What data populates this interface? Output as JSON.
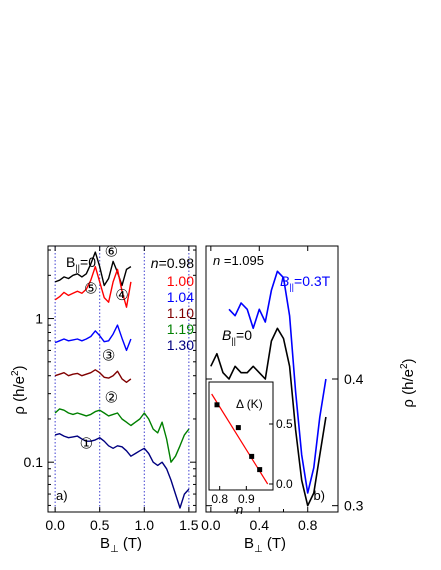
{
  "chart_data": [
    {
      "type": "line",
      "panel_label": "a)",
      "xlabel_main": "B",
      "xlabel_sub": "⊥",
      "xlabel_unit": " (T)",
      "ylabel": "ρ (h/e",
      "ylabel_sup": "2",
      "ylabel_close": ")",
      "yscale": "log",
      "xlim": [
        -0.08,
        1.58
      ],
      "ylim": [
        0.045,
        3.2
      ],
      "xticks": [
        0.0,
        0.5,
        1.0,
        1.5
      ],
      "xtick_labels": [
        "0.0",
        "0.5",
        "1.0",
        "1.5"
      ],
      "yticks": [
        1,
        0.1
      ],
      "ytick_labels": [
        "1",
        "0.1"
      ],
      "vlines": [
        0.0,
        0.5,
        1.0,
        1.5
      ],
      "annotation_bpar": "B",
      "annotation_bpar_sub": "||",
      "annotation_bpar_eq": "=0",
      "legend_header_n": "n",
      "legend_header_eq": "=",
      "series": [
        {
          "name": "0.98",
          "marker": "⑥",
          "color": "#000000",
          "x": [
            0.0,
            0.05,
            0.1,
            0.15,
            0.2,
            0.25,
            0.3,
            0.35,
            0.4,
            0.45,
            0.5,
            0.55,
            0.6,
            0.65,
            0.7,
            0.75,
            0.8,
            0.85
          ],
          "y": [
            1.8,
            1.85,
            1.95,
            1.9,
            2.0,
            2.05,
            1.95,
            2.05,
            2.4,
            2.9,
            2.3,
            1.7,
            1.9,
            2.5,
            2.1,
            1.7,
            2.2,
            2.3
          ]
        },
        {
          "name": "1.00",
          "marker": "⑤",
          "color": "#ff0000",
          "x": [
            0.0,
            0.05,
            0.1,
            0.15,
            0.2,
            0.25,
            0.3,
            0.35,
            0.4,
            0.45,
            0.5,
            0.55,
            0.6,
            0.65,
            0.7,
            0.75,
            0.8,
            0.85
          ],
          "y": [
            1.35,
            1.42,
            1.52,
            1.45,
            1.5,
            1.55,
            1.5,
            1.6,
            1.85,
            2.3,
            1.8,
            1.4,
            1.3,
            1.8,
            2.2,
            1.55,
            1.2,
            1.8
          ]
        },
        {
          "name": "1.04",
          "marker": "④",
          "color": "#0000ff",
          "x": [
            0.0,
            0.05,
            0.1,
            0.15,
            0.2,
            0.25,
            0.3,
            0.35,
            0.4,
            0.45,
            0.5,
            0.55,
            0.6,
            0.65,
            0.7,
            0.75,
            0.8,
            0.85
          ],
          "y": [
            0.68,
            0.7,
            0.72,
            0.7,
            0.71,
            0.72,
            0.7,
            0.72,
            0.75,
            0.82,
            0.76,
            0.69,
            0.7,
            0.78,
            0.9,
            0.73,
            0.6,
            0.72
          ]
        },
        {
          "name": "1.10",
          "marker": "③",
          "color": "#800000",
          "x": [
            0.0,
            0.05,
            0.1,
            0.15,
            0.2,
            0.25,
            0.3,
            0.35,
            0.4,
            0.45,
            0.5,
            0.55,
            0.6,
            0.65,
            0.7,
            0.75,
            0.8,
            0.85
          ],
          "y": [
            0.4,
            0.41,
            0.42,
            0.4,
            0.41,
            0.415,
            0.4,
            0.41,
            0.42,
            0.44,
            0.42,
            0.39,
            0.385,
            0.4,
            0.43,
            0.38,
            0.36,
            0.38
          ]
        },
        {
          "name": "1.19",
          "marker": "②",
          "color": "#008000",
          "x": [
            0.0,
            0.05,
            0.1,
            0.15,
            0.2,
            0.25,
            0.3,
            0.35,
            0.4,
            0.45,
            0.5,
            0.55,
            0.6,
            0.65,
            0.7,
            0.75,
            0.8,
            0.85,
            0.9,
            0.95,
            1.0,
            1.05,
            1.1,
            1.15,
            1.2,
            1.25,
            1.3,
            1.35,
            1.4,
            1.45,
            1.5
          ],
          "y": [
            0.22,
            0.235,
            0.23,
            0.22,
            0.215,
            0.22,
            0.215,
            0.21,
            0.215,
            0.225,
            0.23,
            0.22,
            0.21,
            0.215,
            0.22,
            0.2,
            0.19,
            0.18,
            0.19,
            0.2,
            0.22,
            0.2,
            0.17,
            0.16,
            0.19,
            0.145,
            0.1,
            0.11,
            0.13,
            0.155,
            0.17
          ]
        },
        {
          "name": "1.30",
          "marker": "①",
          "color": "#000080",
          "x": [
            0.0,
            0.05,
            0.1,
            0.15,
            0.2,
            0.25,
            0.3,
            0.35,
            0.4,
            0.45,
            0.5,
            0.55,
            0.6,
            0.65,
            0.7,
            0.75,
            0.8,
            0.85,
            0.9,
            0.95,
            1.0,
            1.05,
            1.1,
            1.15,
            1.2,
            1.25,
            1.3,
            1.35,
            1.4,
            1.45,
            1.5
          ],
          "y": [
            0.155,
            0.158,
            0.152,
            0.148,
            0.15,
            0.152,
            0.145,
            0.14,
            0.14,
            0.143,
            0.148,
            0.14,
            0.13,
            0.125,
            0.13,
            0.128,
            0.12,
            0.11,
            0.115,
            0.12,
            0.125,
            0.115,
            0.1,
            0.095,
            0.1,
            0.09,
            0.075,
            0.06,
            0.048,
            0.06,
            0.065
          ]
        }
      ]
    },
    {
      "type": "line",
      "panel_label": "b)",
      "xlabel_main": "B",
      "xlabel_sub": "⊥",
      "xlabel_unit": " (T)",
      "ylabel": "ρ (h/e",
      "ylabel_sup": "2",
      "ylabel_close": ")",
      "yaxis_side": "right",
      "xlim": [
        -0.04,
        1.05
      ],
      "ylim": [
        0.295,
        0.505
      ],
      "xticks": [
        0.0,
        0.4,
        0.8
      ],
      "xtick_labels": [
        "0.0",
        "0.4",
        "0.8"
      ],
      "yticks": [
        0.3,
        0.4
      ],
      "ytick_labels": [
        "0.3",
        "0.4"
      ],
      "annotation_n": "n",
      "annotation_n_value": " =1.095",
      "label_bpar_b": "B",
      "label_bpar_sub": "||",
      "label_bpar_03": "=0.3T",
      "label_bpar_0": "=0",
      "series": [
        {
          "name": "B||=0",
          "color": "#000000",
          "x": [
            0.0,
            0.05,
            0.1,
            0.15,
            0.2,
            0.25,
            0.3,
            0.35,
            0.4,
            0.45,
            0.5,
            0.55,
            0.6,
            0.65,
            0.7,
            0.75,
            0.8,
            0.85,
            0.9,
            0.95
          ],
          "y": [
            0.41,
            0.42,
            0.405,
            0.4,
            0.41,
            0.405,
            0.405,
            0.41,
            0.405,
            0.4,
            0.43,
            0.44,
            0.432,
            0.41,
            0.36,
            0.32,
            0.3,
            0.31,
            0.34,
            0.37
          ]
        },
        {
          "name": "B||=0.3T",
          "color": "#0000ff",
          "x": [
            0.15,
            0.2,
            0.25,
            0.3,
            0.35,
            0.4,
            0.45,
            0.5,
            0.55,
            0.6,
            0.65,
            0.7,
            0.75,
            0.8,
            0.85,
            0.9,
            0.95
          ],
          "y": [
            0.455,
            0.45,
            0.46,
            0.455,
            0.44,
            0.455,
            0.445,
            0.47,
            0.485,
            0.48,
            0.45,
            0.39,
            0.34,
            0.31,
            0.33,
            0.37,
            0.4
          ]
        }
      ],
      "inset": {
        "type": "scatter",
        "xlabel": "n",
        "ylabel": "Δ (K)",
        "xlim": [
          0.76,
          1.0
        ],
        "ylim": [
          -0.05,
          0.85
        ],
        "xticks": [
          0.8,
          0.9
        ],
        "xtick_labels": [
          "0.8",
          "0.9"
        ],
        "yticks": [
          0.0,
          0.5
        ],
        "ytick_labels": [
          "0.0",
          "0.5"
        ],
        "points": {
          "x": [
            0.79,
            0.87,
            0.92,
            0.95
          ],
          "y": [
            0.66,
            0.47,
            0.23,
            0.12
          ]
        },
        "fit_line": {
          "x": [
            0.77,
            0.98
          ],
          "y": [
            0.75,
            0.0
          ]
        }
      }
    }
  ]
}
